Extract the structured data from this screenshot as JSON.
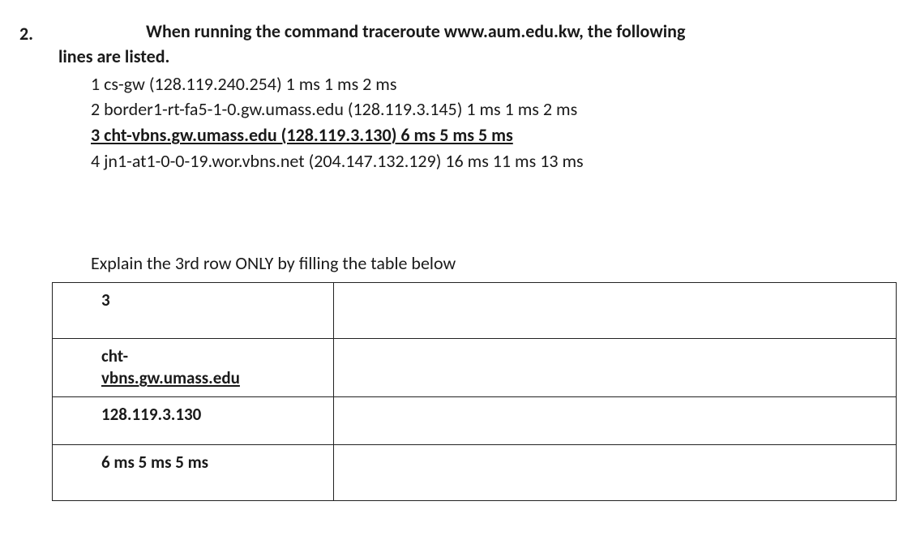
{
  "question_number": "2.",
  "prompt_part1": "When running the command traceroute www.aum.edu.kw, the following",
  "prompt_part2": "lines are listed.",
  "hops": {
    "h1": "1 cs-gw (128.119.240.254) 1 ms 1 ms 2 ms",
    "h2": "2 border1-rt-fa5-1-0.gw.umass.edu (128.119.3.145) 1 ms 1 ms 2 ms",
    "h3": "3 cht-vbns.gw.umass.edu (128.119.3.130) 6 ms 5 ms 5 ms",
    "h4": "4 jn1-at1-0-0-19.wor.vbns.net (204.147.132.129) 16 ms 11 ms 13 ms"
  },
  "instruction": "Explain the 3rd row ONLY by filling the table below",
  "table": {
    "rows": [
      {
        "label_lines": [
          "3"
        ],
        "value": ""
      },
      {
        "label_lines": [
          "cht-",
          "vbns.gw.umass.edu"
        ],
        "underline_last": true,
        "value": ""
      },
      {
        "label_lines": [
          "128.119.3.130"
        ],
        "value": ""
      },
      {
        "label_lines": [
          "6 ms 5 ms 5 ms"
        ],
        "value": ""
      }
    ]
  }
}
